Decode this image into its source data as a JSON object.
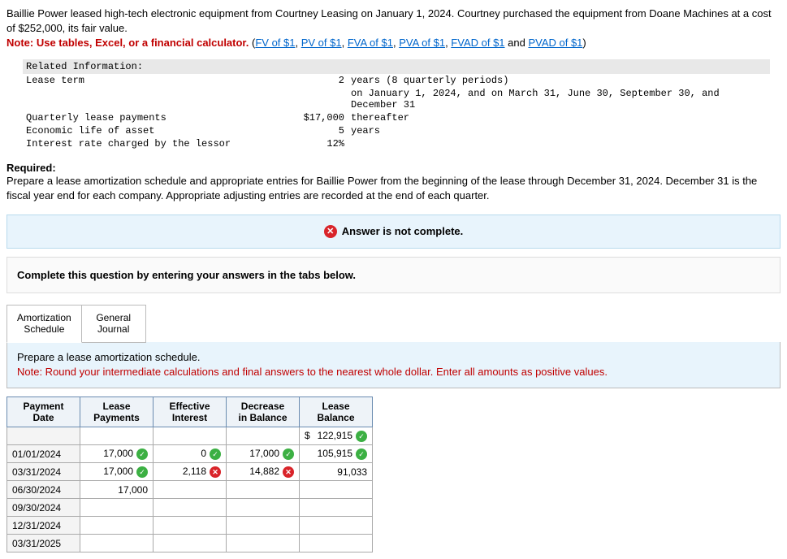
{
  "intro": {
    "line1": "Baillie Power leased high-tech electronic equipment from Courtney Leasing on January 1, 2024. Courtney purchased the equipment from Doane Machines at a cost of $252,000, its fair value.",
    "note_prefix": "Note: Use tables, Excel, or a financial calculator.",
    "links": [
      "FV of $1",
      "PV of $1",
      "FVA of $1",
      "PVA of $1",
      "FVAD of $1"
    ],
    "and": " and ",
    "last_link": "PVAD of $1",
    "paren_open": " (",
    "paren_close": ")"
  },
  "info": {
    "header": "Related Information:",
    "rows": [
      {
        "label": "Lease term",
        "val": "2",
        "desc": "years (8 quarterly periods)"
      },
      {
        "label": "",
        "val": "",
        "desc": "on January 1, 2024, and on March 31, June 30, September 30, and December 31"
      },
      {
        "label": "Quarterly lease payments",
        "val": "$17,000",
        "desc": "thereafter"
      },
      {
        "label": "Economic life of asset",
        "val": "5",
        "desc": "years"
      },
      {
        "label": "Interest rate charged by the lessor",
        "val": "12%",
        "desc": ""
      }
    ]
  },
  "required": {
    "h": "Required:",
    "p": "Prepare a lease amortization schedule and appropriate entries for Baillie Power from the beginning of the lease through December 31, 2024. December 31 is the fiscal year end for each company. Appropriate adjusting entries are recorded at the end of each quarter."
  },
  "alert": "Answer is not complete.",
  "instruct": "Complete this question by entering your answers in the tabs below.",
  "tabs": [
    {
      "l1": "Amortization",
      "l2": "Schedule"
    },
    {
      "l1": "General",
      "l2": "Journal"
    }
  ],
  "sched_note": {
    "l1": "Prepare a lease amortization schedule.",
    "l2": "Note: Round your intermediate calculations and final answers to the nearest whole dollar. Enter all amounts as positive values."
  },
  "table": {
    "headers": [
      {
        "l1": "Payment",
        "l2": "Date"
      },
      {
        "l1": "Lease",
        "l2": "Payments"
      },
      {
        "l1": "Effective",
        "l2": "Interest"
      },
      {
        "l1": "Decrease",
        "l2": "in Balance"
      },
      {
        "l1": "Lease",
        "l2": "Balance"
      }
    ],
    "rows": [
      {
        "date": "",
        "payments": "",
        "pm": "",
        "interest": "",
        "im": "",
        "decrease": "",
        "dm": "",
        "balance": "122,915",
        "bm": "check",
        "dollar": "$"
      },
      {
        "date": "01/01/2024",
        "payments": "17,000",
        "pm": "check",
        "interest": "0",
        "im": "check",
        "decrease": "17,000",
        "dm": "check",
        "balance": "105,915",
        "bm": "check"
      },
      {
        "date": "03/31/2024",
        "payments": "17,000",
        "pm": "check",
        "interest": "2,118",
        "im": "wrong",
        "decrease": "14,882",
        "dm": "wrong",
        "balance": "91,033",
        "bm": ""
      },
      {
        "date": "06/30/2024",
        "payments": "17,000",
        "pm": "",
        "interest": "",
        "im": "",
        "decrease": "",
        "dm": "",
        "balance": "",
        "bm": ""
      },
      {
        "date": "09/30/2024",
        "payments": "",
        "pm": "",
        "interest": "",
        "im": "",
        "decrease": "",
        "dm": "",
        "balance": "",
        "bm": ""
      },
      {
        "date": "12/31/2024",
        "payments": "",
        "pm": "",
        "interest": "",
        "im": "",
        "decrease": "",
        "dm": "",
        "balance": "",
        "bm": ""
      },
      {
        "date": "03/31/2025",
        "payments": "",
        "pm": "",
        "interest": "",
        "im": "",
        "decrease": "",
        "dm": "",
        "balance": "",
        "bm": ""
      }
    ]
  }
}
